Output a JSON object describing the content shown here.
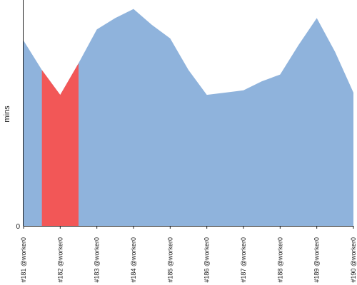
{
  "chart_data": {
    "type": "area",
    "title": "",
    "xlabel": "",
    "ylabel": "mins",
    "y_tick_labels": [
      "0"
    ],
    "ylim": [
      0,
      100
    ],
    "categories": [
      "#181 @worker0",
      "#182 @worker0",
      "#183 @worker0",
      "#184 @worker0",
      "#185 @worker0",
      "#186 @worker0",
      "#187 @worker0",
      "#188 @worker0",
      "#189 @worker0",
      "#190 @worker0"
    ],
    "x": [
      0,
      0.5,
      1,
      1.5,
      2,
      2.5,
      3,
      3.5,
      4,
      4.5,
      5,
      5.5,
      6,
      6.5,
      7,
      7.5,
      8,
      8.5,
      9
    ],
    "values": [
      82,
      69,
      58,
      72,
      87,
      92,
      96,
      89,
      83,
      69,
      58,
      59,
      60,
      64,
      67,
      80,
      92,
      77,
      59
    ],
    "highlight": {
      "from": 0.5,
      "to": 1.5,
      "color": "#f25757"
    },
    "fill_color": "#8fb3dc",
    "grid": false,
    "legend": "none"
  }
}
